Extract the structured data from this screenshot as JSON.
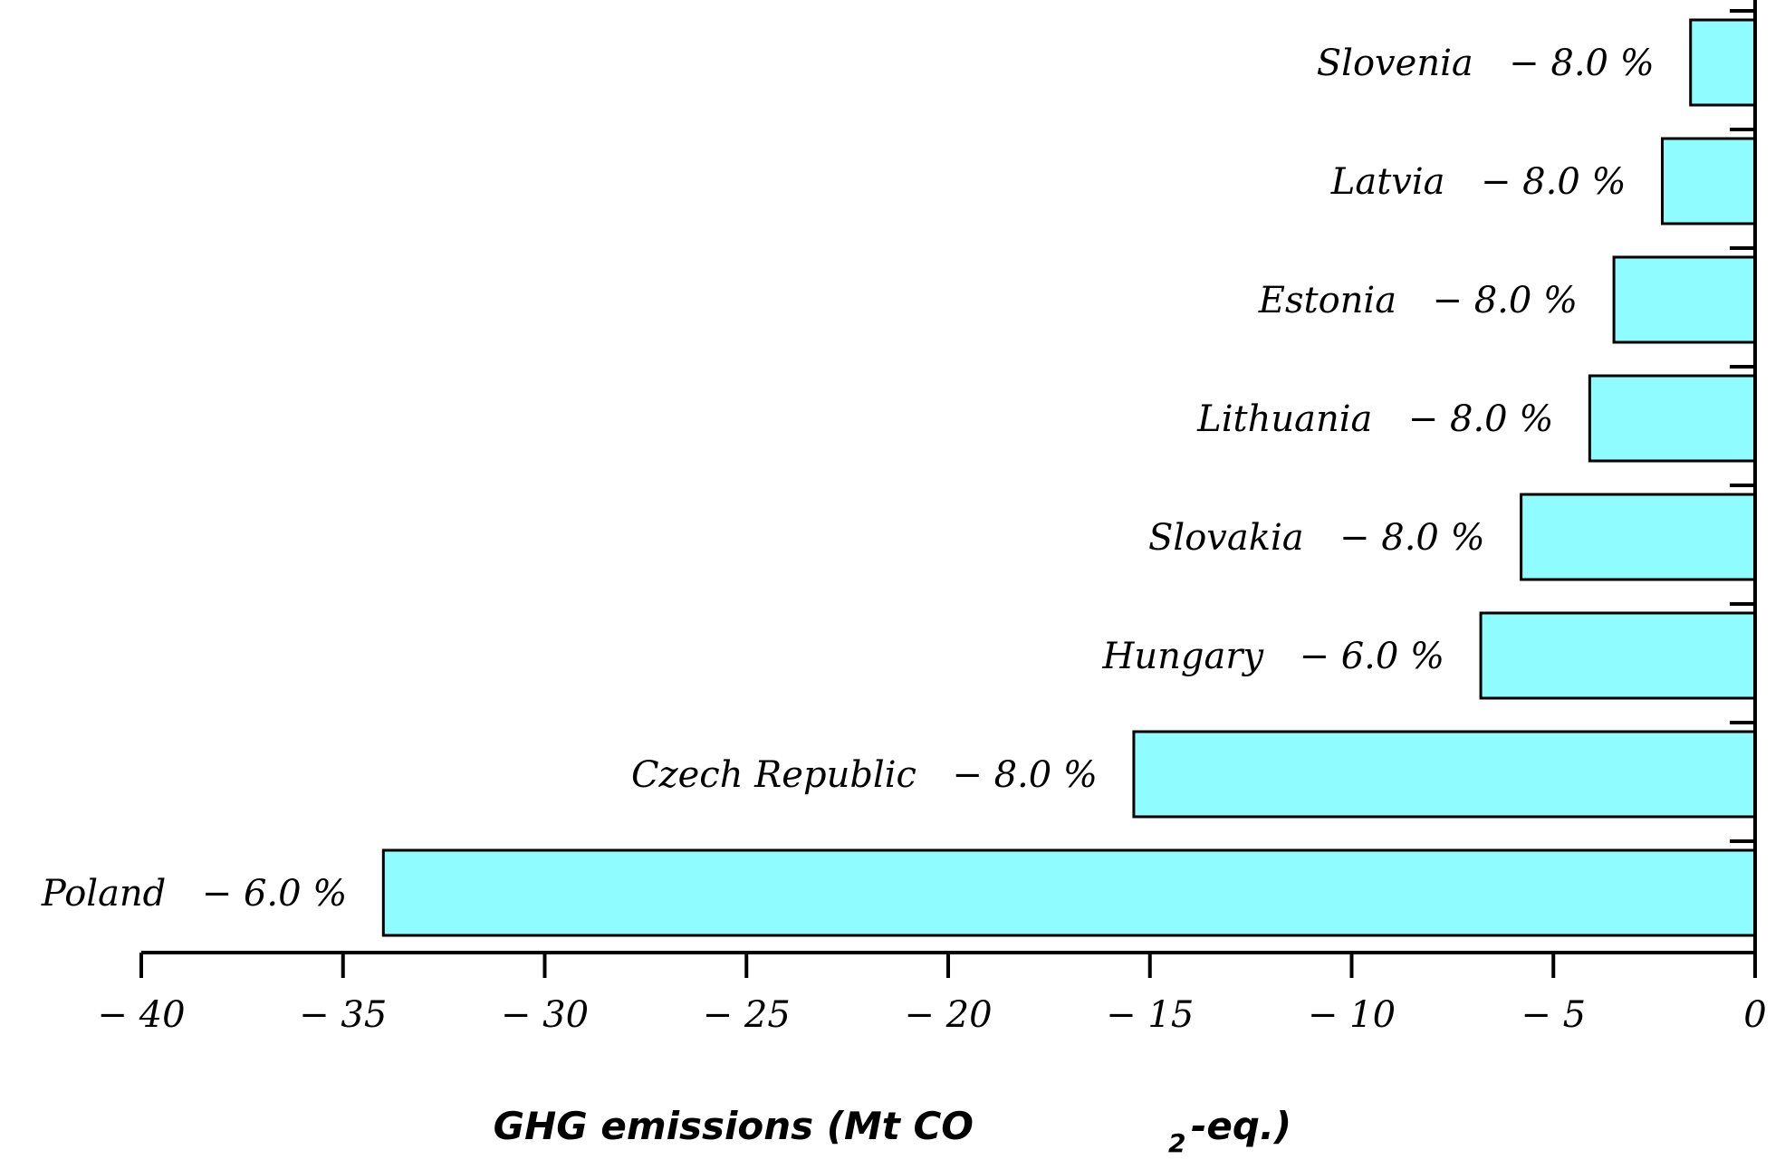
{
  "chart_data": {
    "type": "bar",
    "orientation": "horizontal",
    "categories": [
      "Slovenia",
      "Latvia",
      "Estonia",
      "Lithuania",
      "Slovakia",
      "Hungary",
      "Czech Republic",
      "Poland"
    ],
    "targets": [
      "− 8.0 %",
      "− 8.0 %",
      "− 8.0 %",
      "− 8.0 %",
      "− 8.0 %",
      "− 6.0 %",
      "− 8.0 %",
      "− 6.0 %"
    ],
    "values": [
      -1.6,
      -2.3,
      -3.5,
      -4.1,
      -5.8,
      -6.8,
      -15.4,
      -34.0
    ],
    "xlim": [
      -40,
      0
    ],
    "xticks": [
      -40,
      -35,
      -30,
      -25,
      -20,
      -15,
      -10,
      -5,
      0
    ],
    "xtick_labels": [
      "− 40",
      "− 35",
      "− 30",
      "− 25",
      "− 20",
      "− 15",
      "− 10",
      "− 5",
      "0"
    ],
    "xlabel": "GHG emissions (Mt CO",
    "xlabel_subscript": "2",
    "xlabel_suffix": "-eq.)",
    "bar_color": "#8ffcff",
    "edge_color": "#000000",
    "grid": false
  }
}
